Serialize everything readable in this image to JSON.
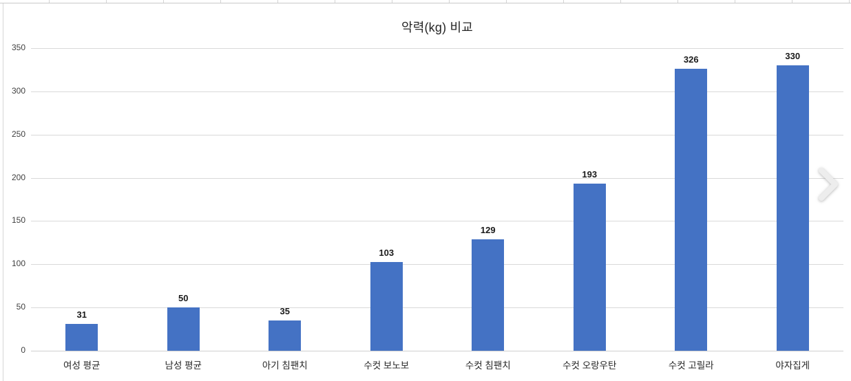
{
  "app": {
    "background_color": "#ffffff",
    "frame_border_color": "#d6d6d6",
    "column_tick_color": "#d4d4d4"
  },
  "overlay": {
    "next_arrow": {
      "icon": "chevron-right-icon",
      "color": "#ededed"
    }
  },
  "chart_data": {
    "type": "bar",
    "title": "악력(kg) 비교",
    "categories": [
      "여성 평균",
      "남성 평균",
      "아기 침팬치",
      "수컷 보노보",
      "수컷 침팬치",
      "수컷 오랑우탄",
      "수컷 고릴라",
      "야자집게"
    ],
    "values": [
      31,
      50,
      35,
      103,
      129,
      193,
      326,
      330
    ],
    "data_labels": [
      31,
      50,
      35,
      103,
      129,
      193,
      326,
      330
    ],
    "xlabel": "",
    "ylabel": "",
    "ylim": [
      0,
      350
    ],
    "yticks": [
      0,
      50,
      100,
      150,
      200,
      250,
      300,
      350
    ],
    "grid": true,
    "gridline_color": "#d9d9d9",
    "bar_color": "#4472C4",
    "axis_text_color": "#404040",
    "value_label_color": "#1a1a1a",
    "category_label_color": "#262626",
    "title_color": "#262626",
    "legend": "none"
  }
}
